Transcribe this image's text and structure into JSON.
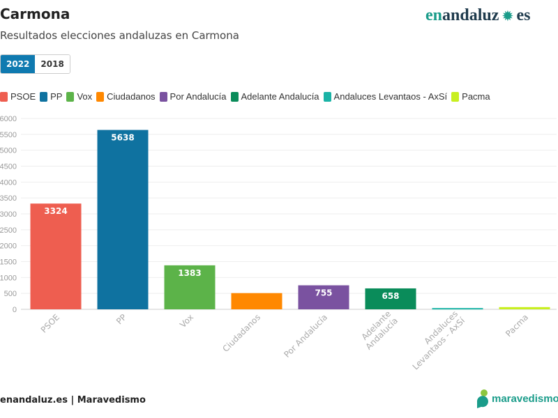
{
  "header": {
    "title": "Carmona",
    "subtitle": "Resultados elecciones andaluzas en Carmona",
    "logo": "enandaluz.es"
  },
  "tabs": [
    {
      "label": "2022",
      "active": true
    },
    {
      "label": "2018",
      "active": false
    }
  ],
  "footer": {
    "source": "enandaluz.es | Maravedismo",
    "logo": "maravedismo"
  },
  "chart_data": {
    "type": "bar",
    "categories": [
      "PSOE",
      "PP",
      "Vox",
      "Ciudadanos",
      "Por Andalucía",
      "Adelante Andalucía",
      "Andaluces Levantaos - AxSí",
      "Pacma"
    ],
    "tick_labels": [
      [
        "PSOE"
      ],
      [
        "PP"
      ],
      [
        "Vox"
      ],
      [
        "Ciudadanos"
      ],
      [
        "Por Andalucía"
      ],
      [
        "Adelante",
        "Andalucía"
      ],
      [
        "Andaluces",
        "Levantaos - AxSí"
      ],
      [
        "Pacma"
      ]
    ],
    "values": [
      3324,
      5638,
      1383,
      510,
      755,
      658,
      40,
      70
    ],
    "data_labels": [
      "3324",
      "5638",
      "1383",
      "",
      "755",
      "658",
      "",
      ""
    ],
    "colors": [
      "#ee5e50",
      "#0f72a0",
      "#5cb349",
      "#ff8800",
      "#7a52a0",
      "#0a8c5a",
      "#1ab3a6",
      "#c8ef20"
    ],
    "ylim": [
      0,
      6000
    ],
    "yticks": [
      0,
      500,
      1000,
      1500,
      2000,
      2500,
      3000,
      3500,
      4000,
      4500,
      5000,
      5500,
      6000
    ],
    "grid": true,
    "legend": "top-left"
  }
}
